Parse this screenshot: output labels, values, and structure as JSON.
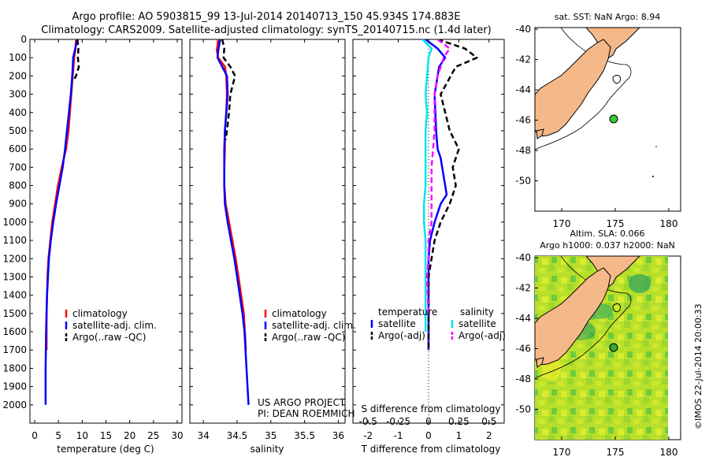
{
  "header": {
    "line1": "Argo profile: AO 5903815_99 13-Jul-2014 20140713_150 45.934S 174.883E",
    "line2": "Climatology: CARS2009. Satellite-adjusted climatology: synTS_20140715.nc (1.4d later)"
  },
  "project_note": {
    "line1": "US ARGO PROJECT",
    "line2": "PI: DEAN ROEMMICH"
  },
  "watermark": "©IMOS 22-Jul-2014 20:00:33",
  "colors": {
    "climatology": "#ff0000",
    "satellite": "#0000ff",
    "argo": "#000000",
    "sal_satellite": "#00e5ee",
    "sal_argo": "#ff00ff",
    "land": "#f5b888",
    "sst_marker": "#33cc33"
  },
  "chart_data": [
    {
      "type": "line",
      "xlabel": "temperature (deg C)",
      "ylabel": "",
      "xlim": [
        -1,
        31
      ],
      "ylim": [
        2100,
        0
      ],
      "xticks": [
        0,
        5,
        10,
        15,
        20,
        25,
        30
      ],
      "yticks": [
        0,
        100,
        200,
        300,
        400,
        500,
        600,
        700,
        800,
        900,
        1000,
        1100,
        1200,
        1300,
        1400,
        1500,
        1600,
        1700,
        1800,
        1900,
        2000
      ],
      "legend": [
        "climatology",
        "satellite-adj. clim.",
        "Argo(..raw -QC)"
      ],
      "legend_position": "lower-center",
      "series": [
        {
          "name": "climatology",
          "color": "#ff0000",
          "x": [
            8.7,
            8.6,
            8.3,
            8.0,
            7.7,
            7.4,
            7.1,
            6.6,
            5.7,
            4.9,
            4.3,
            3.7,
            3.3,
            2.9,
            2.7,
            2.6,
            2.5,
            2.5
          ],
          "y": [
            0,
            50,
            100,
            200,
            300,
            400,
            500,
            600,
            700,
            800,
            900,
            1000,
            1100,
            1200,
            1300,
            1400,
            1500,
            1700
          ]
        },
        {
          "name": "satellite-adj. clim.",
          "color": "#0000ff",
          "x": [
            9.0,
            8.7,
            8.1,
            7.9,
            7.6,
            7.2,
            6.8,
            6.4,
            5.9,
            5.2,
            4.5,
            3.9,
            3.4,
            3.0,
            2.8,
            2.6,
            2.5,
            2.4,
            2.3,
            2.3
          ],
          "y": [
            0,
            30,
            100,
            200,
            300,
            400,
            500,
            600,
            700,
            800,
            900,
            1000,
            1100,
            1200,
            1300,
            1400,
            1500,
            1600,
            1800,
            2000
          ]
        },
        {
          "name": "Argo(..raw -QC)",
          "color": "#000000",
          "dashed": true,
          "x": [
            9.0,
            9.2,
            9.1,
            9.3,
            8.7,
            8.1
          ],
          "y": [
            0,
            50,
            100,
            150,
            200,
            230
          ]
        }
      ]
    },
    {
      "type": "line",
      "xlabel": "salinity",
      "ylabel": "",
      "xlim": [
        33.8,
        36.1
      ],
      "ylim": [
        2100,
        0
      ],
      "xticks": [
        34,
        34.5,
        35,
        35.5,
        36
      ],
      "legend": [
        "climatology",
        "satellite-adj. clim.",
        "Argo(..raw -QC)"
      ],
      "legend_position": "lower-right",
      "series": [
        {
          "name": "climatology",
          "color": "#ff0000",
          "x": [
            34.22,
            34.2,
            34.22,
            34.32,
            34.34,
            34.35,
            34.34,
            34.32,
            34.32,
            34.31,
            34.31,
            34.33,
            34.38,
            34.43,
            34.48,
            34.52,
            34.56,
            34.6,
            34.63
          ],
          "y": [
            0,
            60,
            100,
            150,
            200,
            300,
            400,
            500,
            600,
            700,
            800,
            900,
            1000,
            1100,
            1200,
            1300,
            1400,
            1500,
            1700
          ]
        },
        {
          "name": "satellite-adj. clim.",
          "color": "#0000ff",
          "x": [
            34.25,
            34.22,
            34.21,
            34.28,
            34.35,
            34.36,
            34.34,
            34.32,
            34.31,
            34.31,
            34.31,
            34.32,
            34.36,
            34.41,
            34.46,
            34.5,
            34.54,
            34.58,
            34.61,
            34.64,
            34.67
          ],
          "y": [
            0,
            60,
            100,
            150,
            200,
            300,
            400,
            500,
            600,
            700,
            800,
            900,
            1000,
            1100,
            1200,
            1300,
            1400,
            1500,
            1600,
            1800,
            2000
          ]
        },
        {
          "name": "Argo(..raw -QC)",
          "color": "#000000",
          "dashed": true,
          "x": [
            34.28,
            34.31,
            34.3,
            34.4,
            34.47,
            34.4,
            34.38,
            34.35,
            34.33
          ],
          "y": [
            0,
            50,
            100,
            150,
            200,
            300,
            400,
            500,
            550
          ]
        }
      ]
    },
    {
      "type": "line",
      "xlabel": "T difference from climatology",
      "title": "S difference from climatology",
      "xlim": [
        -2.5,
        2.5
      ],
      "ylim": [
        2100,
        0
      ],
      "xticks": [
        -2,
        -1,
        0,
        1,
        2
      ],
      "x2ticks": [
        "-0.5",
        "-0.25",
        "0",
        "0.25",
        "0.5"
      ],
      "legend_groups": [
        {
          "title": "temperature",
          "items": [
            "satellite",
            "Argo(-adj)"
          ]
        },
        {
          "title": "salinity",
          "items": [
            "satellite",
            "Argo(-adj)"
          ]
        }
      ],
      "series": [
        {
          "name": "temperature satellite",
          "color": "#0000ff",
          "x": [
            -0.1,
            0.3,
            0.55,
            0.35,
            0.2,
            0.25,
            0.3,
            0.4,
            0.5,
            0.6,
            0.4,
            0.2,
            0.05,
            0.0,
            0.0,
            0.0,
            0.0,
            0.0,
            0.0
          ],
          "y": [
            0,
            50,
            100,
            150,
            300,
            500,
            600,
            650,
            750,
            850,
            900,
            1000,
            1100,
            1200,
            1300,
            1400,
            1500,
            1600,
            1700
          ]
        },
        {
          "name": "temperature Argo(-adj)",
          "color": "#000000",
          "dashed": true,
          "x": [
            0.3,
            1.2,
            1.6,
            0.9,
            0.4,
            0.7,
            1.0,
            0.8,
            0.9,
            0.7,
            0.4,
            0.2,
            0.1,
            0.0,
            0.0,
            0.0,
            0.0,
            0.0
          ],
          "y": [
            0,
            50,
            100,
            150,
            300,
            500,
            600,
            700,
            800,
            900,
            1000,
            1100,
            1200,
            1300,
            1400,
            1500,
            1600,
            1700
          ]
        },
        {
          "name": "salinity satellite",
          "color": "#00e5ee",
          "x": [
            -0.2,
            0.1,
            0.0,
            -0.05,
            -0.1,
            -0.05,
            -0.1,
            -0.1,
            -0.1,
            -0.1,
            -0.15,
            -0.15,
            -0.1,
            -0.1,
            -0.1,
            -0.1,
            -0.1
          ],
          "y": [
            0,
            50,
            100,
            200,
            300,
            400,
            500,
            600,
            700,
            800,
            900,
            1000,
            1100,
            1200,
            1300,
            1400,
            1600
          ]
        },
        {
          "name": "salinity Argo(-adj)",
          "color": "#ff00ff",
          "dashed": true,
          "x": [
            0.3,
            0.7,
            0.5,
            0.3,
            0.2,
            0.2,
            0.1,
            0.1,
            0.1,
            0.0,
            0.0,
            -0.05,
            0.0
          ],
          "y": [
            0,
            50,
            100,
            200,
            300,
            500,
            700,
            900,
            1000,
            1100,
            1200,
            1300,
            1500
          ]
        }
      ]
    }
  ],
  "maps": [
    {
      "title": "sat. SST: NaN Argo: 8.94",
      "xticks": [
        "170",
        "175",
        "180"
      ],
      "yticks": [
        "-40",
        "-42",
        "-44",
        "-46",
        "-48",
        "-50"
      ]
    },
    {
      "title_line1": "Altim. SLA: 0.066",
      "title_line2": "Argo h1000: 0.037 h2000: NaN",
      "xticks": [
        "170",
        "175",
        "180"
      ],
      "yticks": [
        "-40",
        "-42",
        "-44",
        "-46",
        "-48",
        "-50"
      ]
    }
  ]
}
